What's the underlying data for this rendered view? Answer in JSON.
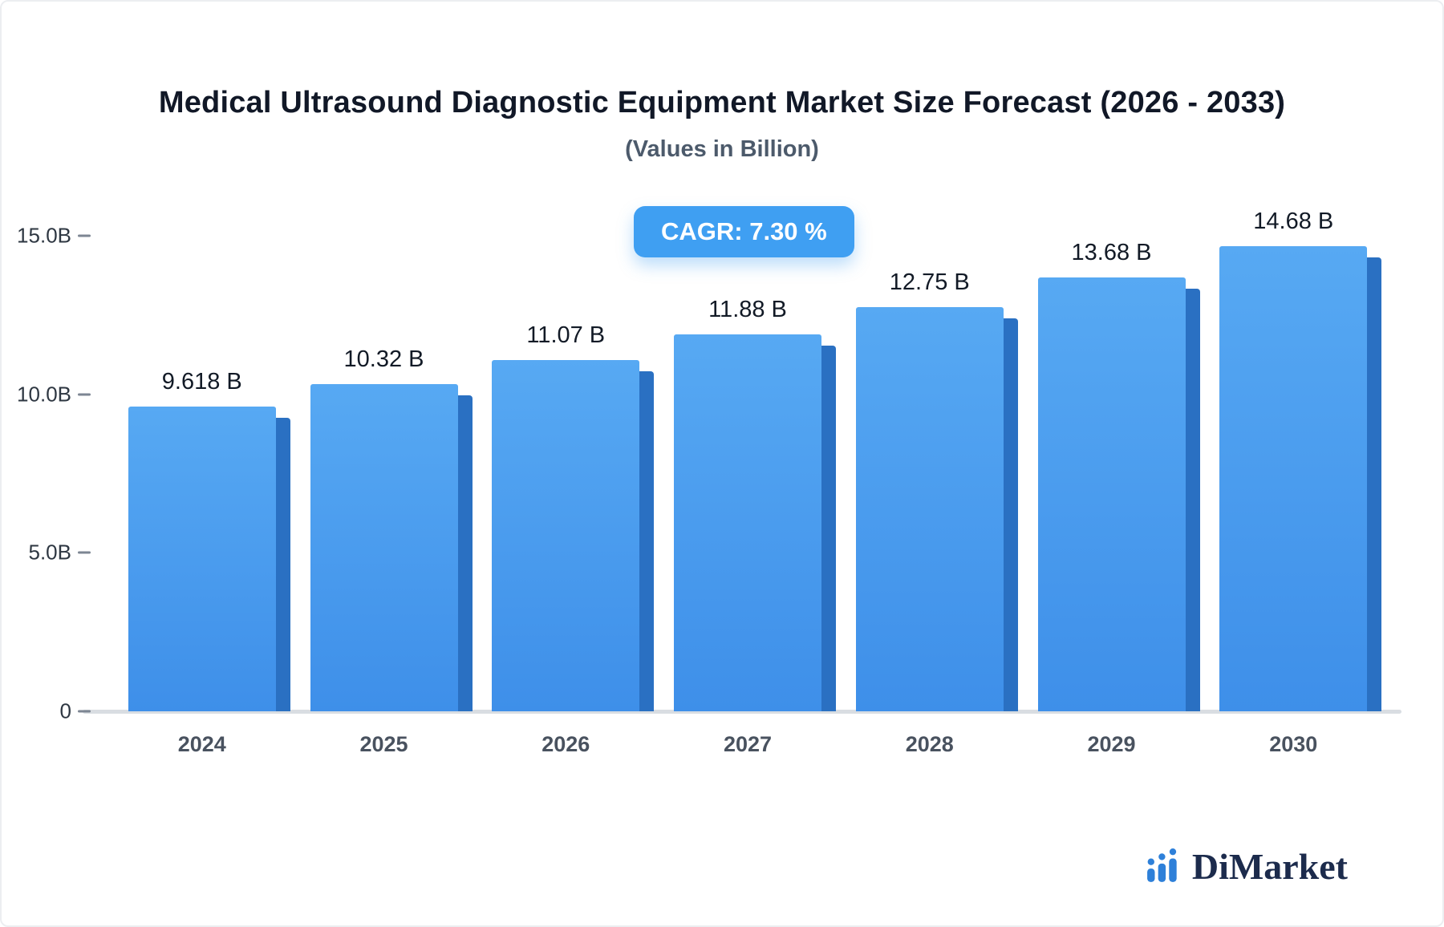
{
  "chart": {
    "title": "Medical Ultrasound Diagnostic Equipment Market Size Forecast (2026 - 2033)",
    "subtitle": "(Values in Billion)",
    "cagr_label": "CAGR: 7.30 %"
  },
  "chart_data": {
    "type": "bar",
    "title": "Medical Ultrasound Diagnostic Equipment Market Size Forecast (2026 - 2033)",
    "subtitle": "(Values in Billion)",
    "categories": [
      "2024",
      "2025",
      "2026",
      "2027",
      "2028",
      "2029",
      "2030"
    ],
    "values": [
      9.618,
      10.32,
      11.07,
      11.88,
      12.75,
      13.68,
      14.68
    ],
    "value_labels": [
      "9.618 B",
      "10.32 B",
      "11.07 B",
      "11.88 B",
      "12.75 B",
      "13.68 B",
      "14.68 B"
    ],
    "cagr": "CAGR: 7.30 %",
    "xlabel": "",
    "ylabel": "",
    "ylim": [
      0,
      15
    ],
    "yticks": [
      {
        "label": "15.0B",
        "value": 15
      },
      {
        "label": "10.0B",
        "value": 10
      },
      {
        "label": "5.0B",
        "value": 5
      },
      {
        "label": "0",
        "value": 0
      }
    ],
    "grid": false,
    "legend": false,
    "colors": {
      "bar_top": "#57a9f3",
      "bar_bottom": "#3e8fe9",
      "bar_side": "#2a70c2",
      "badge": "#3f9ff2",
      "axis_line": "#d9dde2"
    }
  },
  "logo": {
    "text": "DiMarket",
    "icon": "bar-chart-icon",
    "text_color": "#1c2b4c",
    "icon_color": "#2e80d9"
  }
}
